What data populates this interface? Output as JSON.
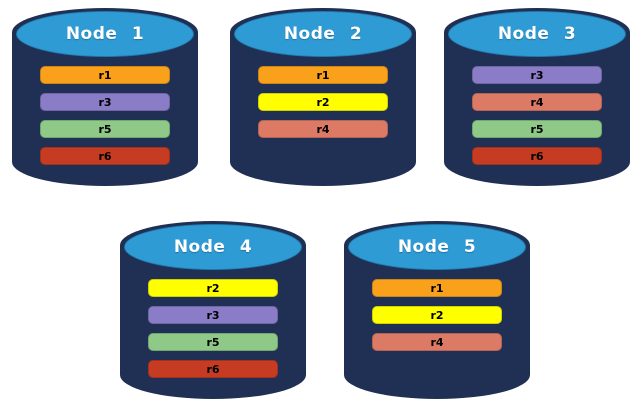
{
  "diagram": {
    "type": "database-replication-nodes",
    "colors": {
      "cylinder_body": "#1F3054",
      "cylinder_top": "#2E9BD5",
      "node_label_text": "#FFFFFF",
      "bar_label_text": "#000000",
      "background": "#FFFFFF"
    },
    "replica_colors": {
      "r1": "#F9A11B",
      "r2": "#FFFF00",
      "r3": "#8B7CC8",
      "r4": "#DD7A66",
      "r5": "#8FC987",
      "r6": "#C63C22"
    },
    "nodes": [
      {
        "label": "Node 1",
        "replicas": [
          "r1",
          "r3",
          "r5",
          "r6"
        ]
      },
      {
        "label": "Node 2",
        "replicas": [
          "r1",
          "r2",
          "r4"
        ]
      },
      {
        "label": "Node 3",
        "replicas": [
          "r3",
          "r4",
          "r5",
          "r6"
        ]
      },
      {
        "label": "Node 4",
        "replicas": [
          "r2",
          "r3",
          "r5",
          "r6"
        ]
      },
      {
        "label": "Node 5",
        "replicas": [
          "r1",
          "r2",
          "r4"
        ]
      }
    ]
  }
}
